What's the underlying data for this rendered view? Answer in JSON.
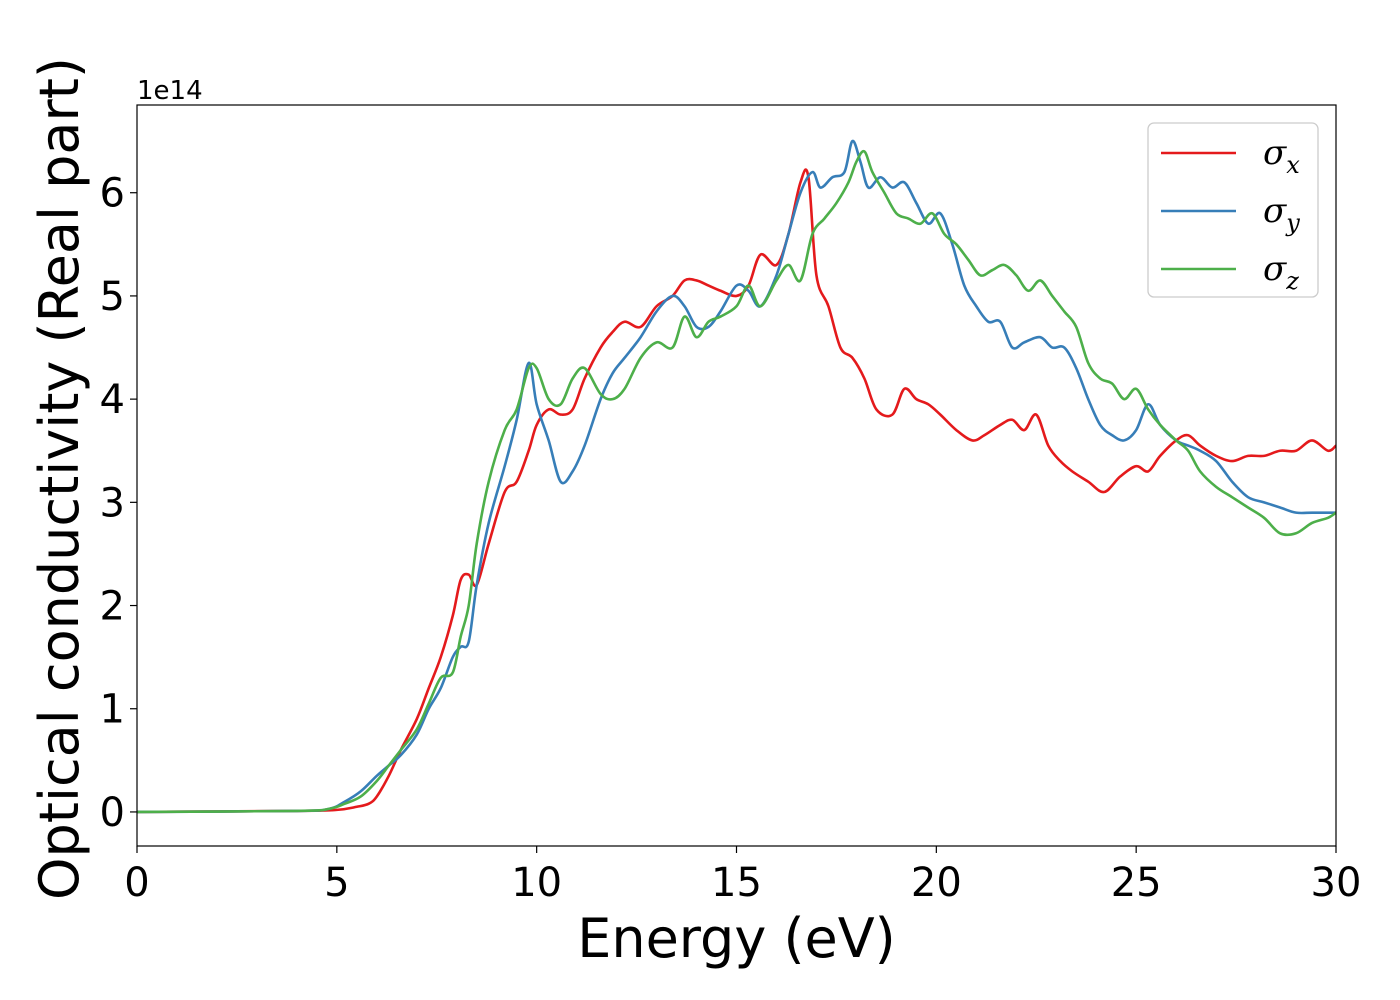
{
  "chart_data": {
    "type": "line",
    "xlabel": "Energy (eV)",
    "ylabel": "Optical conductivity (Real part)",
    "y_offset_label": "1e14",
    "xlim": [
      0,
      30
    ],
    "ylim": [
      -0.33,
      6.85
    ],
    "x_ticks": [
      0,
      5,
      10,
      15,
      20,
      25,
      30
    ],
    "y_ticks": [
      0,
      1,
      2,
      3,
      4,
      5,
      6
    ],
    "grid": false,
    "legend_position": "top-right",
    "series": [
      {
        "name": "σx",
        "legend_main": "σ",
        "legend_sub": "x",
        "color": "#e41a1c",
        "x": [
          0,
          4,
          5,
          5.5,
          5.8,
          6,
          6.3,
          6.6,
          7,
          7.3,
          7.6,
          7.9,
          8.1,
          8.3,
          8.5,
          8.8,
          9.2,
          9.5,
          9.8,
          10,
          10.3,
          10.6,
          10.9,
          11.2,
          11.6,
          11.9,
          12.2,
          12.6,
          13,
          13.4,
          13.7,
          14,
          14.3,
          14.6,
          15,
          15.3,
          15.6,
          16,
          16.3,
          16.6,
          16.8,
          17,
          17.3,
          17.6,
          17.9,
          18.2,
          18.5,
          18.9,
          19.2,
          19.5,
          19.8,
          20.1,
          20.5,
          20.9,
          21.2,
          21.6,
          21.9,
          22.2,
          22.5,
          22.8,
          23.1,
          23.4,
          23.8,
          24.2,
          24.6,
          25,
          25.3,
          25.6,
          26,
          26.3,
          26.6,
          27,
          27.4,
          27.8,
          28.2,
          28.6,
          29,
          29.4,
          29.8,
          30
        ],
        "y": [
          0,
          0.01,
          0.02,
          0.05,
          0.08,
          0.15,
          0.35,
          0.6,
          0.9,
          1.2,
          1.5,
          1.9,
          2.25,
          2.3,
          2.2,
          2.6,
          3.1,
          3.2,
          3.5,
          3.75,
          3.9,
          3.85,
          3.9,
          4.2,
          4.5,
          4.65,
          4.75,
          4.7,
          4.9,
          5.0,
          5.15,
          5.15,
          5.1,
          5.05,
          5.0,
          5.1,
          5.4,
          5.3,
          5.6,
          6.1,
          6.15,
          5.2,
          4.9,
          4.5,
          4.4,
          4.2,
          3.9,
          3.85,
          4.1,
          4.0,
          3.95,
          3.85,
          3.7,
          3.6,
          3.65,
          3.75,
          3.8,
          3.7,
          3.85,
          3.55,
          3.4,
          3.3,
          3.2,
          3.1,
          3.25,
          3.35,
          3.3,
          3.45,
          3.6,
          3.65,
          3.55,
          3.45,
          3.4,
          3.45,
          3.45,
          3.5,
          3.5,
          3.6,
          3.5,
          3.55
        ]
      },
      {
        "name": "σy",
        "legend_main": "σ",
        "legend_sub": "y",
        "color": "#377eb8",
        "x": [
          0,
          4,
          4.8,
          5.2,
          5.6,
          6,
          6.3,
          6.6,
          7,
          7.3,
          7.6,
          7.9,
          8.1,
          8.3,
          8.5,
          8.8,
          9.2,
          9.5,
          9.8,
          10,
          10.3,
          10.6,
          10.9,
          11.2,
          11.6,
          11.9,
          12.2,
          12.6,
          13,
          13.4,
          13.7,
          14,
          14.3,
          14.6,
          15,
          15.3,
          15.6,
          16,
          16.3,
          16.6,
          16.9,
          17.1,
          17.4,
          17.7,
          17.9,
          18.1,
          18.3,
          18.6,
          18.9,
          19.2,
          19.5,
          19.8,
          20.1,
          20.4,
          20.7,
          21,
          21.3,
          21.6,
          21.9,
          22.2,
          22.6,
          22.9,
          23.2,
          23.5,
          23.8,
          24.1,
          24.4,
          24.7,
          25,
          25.3,
          25.6,
          26,
          26.3,
          26.6,
          27,
          27.4,
          27.8,
          28.2,
          28.6,
          29,
          29.4,
          29.8,
          30
        ],
        "y": [
          0,
          0.01,
          0.03,
          0.1,
          0.2,
          0.35,
          0.45,
          0.55,
          0.75,
          1.0,
          1.2,
          1.5,
          1.6,
          1.65,
          2.2,
          2.8,
          3.35,
          3.8,
          4.35,
          3.95,
          3.6,
          3.2,
          3.3,
          3.55,
          4.0,
          4.25,
          4.4,
          4.6,
          4.85,
          5.0,
          4.9,
          4.7,
          4.7,
          4.85,
          5.1,
          5.05,
          4.9,
          5.2,
          5.6,
          6.0,
          6.2,
          6.05,
          6.15,
          6.2,
          6.5,
          6.3,
          6.05,
          6.15,
          6.05,
          6.1,
          5.9,
          5.7,
          5.8,
          5.5,
          5.1,
          4.9,
          4.75,
          4.75,
          4.5,
          4.55,
          4.6,
          4.5,
          4.5,
          4.3,
          4.0,
          3.75,
          3.65,
          3.6,
          3.7,
          3.95,
          3.75,
          3.6,
          3.55,
          3.5,
          3.4,
          3.2,
          3.05,
          3.0,
          2.95,
          2.9,
          2.9,
          2.9,
          2.9
        ]
      },
      {
        "name": "σz",
        "legend_main": "σ",
        "legend_sub": "z",
        "color": "#4daf4a",
        "x": [
          0,
          4,
          4.8,
          5.2,
          5.6,
          6,
          6.3,
          6.6,
          7,
          7.3,
          7.6,
          7.9,
          8.1,
          8.3,
          8.5,
          8.8,
          9.2,
          9.5,
          9.8,
          10,
          10.3,
          10.6,
          10.9,
          11.2,
          11.6,
          11.9,
          12.2,
          12.6,
          13,
          13.4,
          13.7,
          14,
          14.3,
          14.6,
          15,
          15.3,
          15.6,
          16,
          16.3,
          16.6,
          16.9,
          17.2,
          17.5,
          17.8,
          18,
          18.2,
          18.4,
          18.7,
          19,
          19.3,
          19.6,
          19.9,
          20.2,
          20.5,
          20.8,
          21.1,
          21.4,
          21.7,
          22,
          22.3,
          22.6,
          22.9,
          23.2,
          23.5,
          23.8,
          24.1,
          24.4,
          24.7,
          25,
          25.3,
          25.6,
          26,
          26.3,
          26.6,
          27,
          27.4,
          27.8,
          28.2,
          28.6,
          29,
          29.4,
          29.8,
          30
        ],
        "y": [
          0,
          0.01,
          0.03,
          0.08,
          0.15,
          0.3,
          0.45,
          0.6,
          0.8,
          1.05,
          1.3,
          1.35,
          1.7,
          2.0,
          2.6,
          3.2,
          3.7,
          3.9,
          4.3,
          4.3,
          4.0,
          3.95,
          4.2,
          4.3,
          4.05,
          4.0,
          4.1,
          4.4,
          4.55,
          4.5,
          4.8,
          4.6,
          4.75,
          4.8,
          4.9,
          5.1,
          4.9,
          5.15,
          5.3,
          5.15,
          5.6,
          5.75,
          5.9,
          6.1,
          6.3,
          6.4,
          6.2,
          6.0,
          5.8,
          5.75,
          5.7,
          5.8,
          5.6,
          5.5,
          5.35,
          5.2,
          5.25,
          5.3,
          5.2,
          5.05,
          5.15,
          5.0,
          4.85,
          4.7,
          4.35,
          4.2,
          4.15,
          4.0,
          4.1,
          3.9,
          3.75,
          3.6,
          3.5,
          3.3,
          3.15,
          3.05,
          2.95,
          2.85,
          2.7,
          2.7,
          2.8,
          2.85,
          2.9
        ]
      }
    ]
  }
}
